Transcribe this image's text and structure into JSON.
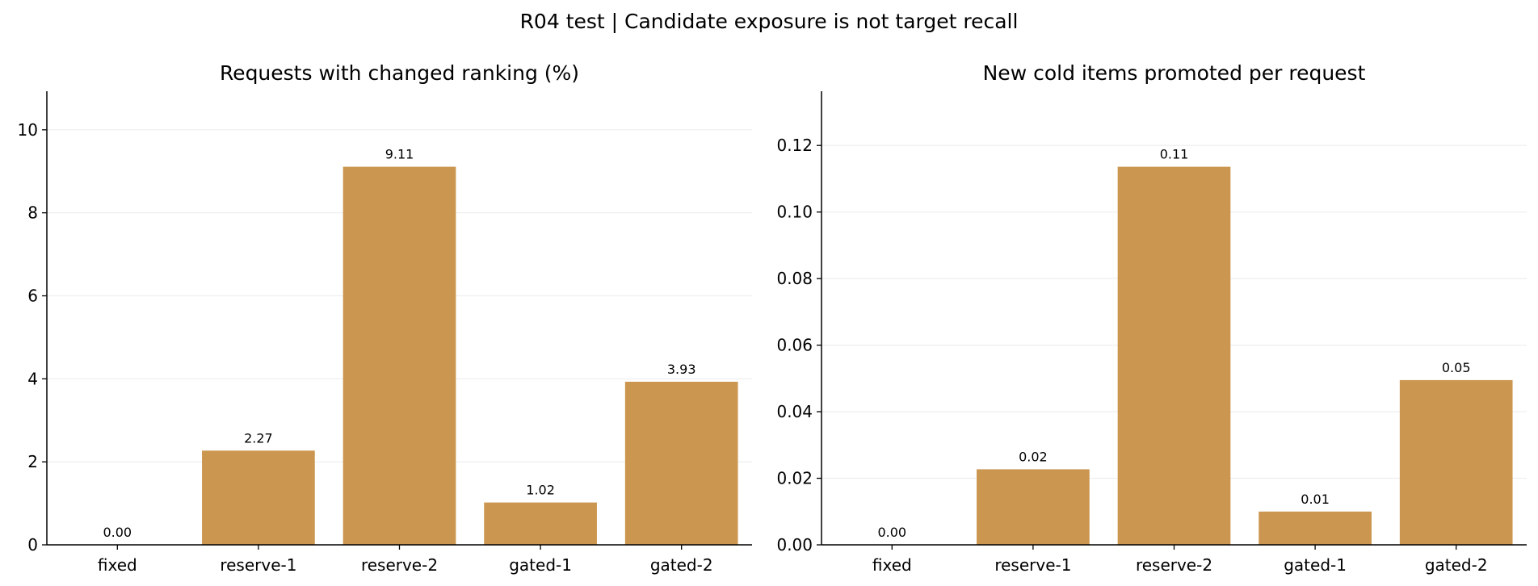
{
  "figure": {
    "suptitle": "R04 test | Candidate exposure is not target recall"
  },
  "colors": {
    "bar": "#cb964f",
    "grid": "#eeeeee",
    "axis": "#000000"
  },
  "chart_data": [
    {
      "type": "bar",
      "title": "Requests with changed ranking (%)",
      "xlabel": "",
      "ylabel": "",
      "categories": [
        "fixed",
        "reserve-1",
        "reserve-2",
        "gated-1",
        "gated-2"
      ],
      "values": [
        0.0,
        2.27,
        9.11,
        1.02,
        3.93
      ],
      "data_labels": [
        "0.00",
        "2.27",
        "9.11",
        "1.02",
        "3.93"
      ],
      "ylim": [
        0,
        10.93
      ],
      "yticks": [
        0,
        2,
        4,
        6,
        8,
        10
      ],
      "ytick_labels": [
        "0",
        "2",
        "4",
        "6",
        "8",
        "10"
      ],
      "grid": "y"
    },
    {
      "type": "bar",
      "title": "New cold items promoted per request",
      "xlabel": "",
      "ylabel": "",
      "categories": [
        "fixed",
        "reserve-1",
        "reserve-2",
        "gated-1",
        "gated-2"
      ],
      "values": [
        0.0,
        0.0227,
        0.1136,
        0.01,
        0.0495
      ],
      "data_labels": [
        "0.00",
        "0.02",
        "0.11",
        "0.01",
        "0.05"
      ],
      "ylim": [
        0,
        0.1363
      ],
      "yticks": [
        0,
        0.02,
        0.04,
        0.06,
        0.08,
        0.1,
        0.12
      ],
      "ytick_labels": [
        "0.00",
        "0.02",
        "0.04",
        "0.06",
        "0.08",
        "0.10",
        "0.12"
      ],
      "grid": "y"
    }
  ]
}
